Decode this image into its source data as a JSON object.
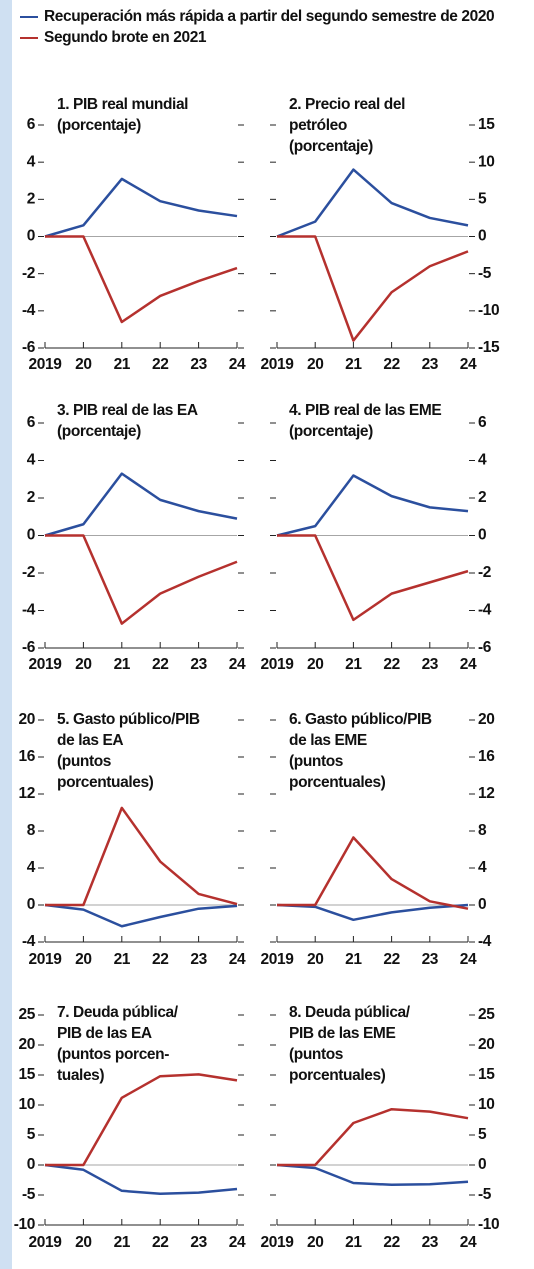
{
  "legend": [
    {
      "name": "Recuperación más rápida a partir del segundo semestre de 2020",
      "color": "#2b4f9e"
    },
    {
      "name": "Segundo brote en 2021",
      "color": "#b5312e"
    }
  ],
  "chart_data": [
    {
      "type": "line",
      "title": [
        "1. PIB real mundial",
        "(porcentaje)"
      ],
      "categories": [
        "2019",
        "20",
        "21",
        "22",
        "23",
        "24"
      ],
      "series": [
        {
          "values": [
            0,
            0.6,
            3.1,
            1.9,
            1.4,
            1.1
          ]
        },
        {
          "values": [
            0,
            0,
            -4.6,
            -3.2,
            -2.4,
            -1.7
          ]
        }
      ],
      "ylim": [
        -6,
        6
      ],
      "yticks": [
        -6,
        -4,
        -2,
        0,
        2,
        4,
        6
      ]
    },
    {
      "type": "line",
      "title": [
        "2. Precio real del",
        "petróleo",
        "(porcentaje)"
      ],
      "categories": [
        "2019",
        "20",
        "21",
        "22",
        "23",
        "24"
      ],
      "series": [
        {
          "values": [
            0,
            2,
            9,
            4.5,
            2.5,
            1.5
          ]
        },
        {
          "values": [
            0,
            0,
            -14,
            -7.5,
            -4,
            -2
          ]
        }
      ],
      "ylim": [
        -15,
        15
      ],
      "yticks": [
        -15,
        -10,
        -5,
        0,
        5,
        10,
        15
      ]
    },
    {
      "type": "line",
      "title": [
        "3. PIB real de las EA",
        "(porcentaje)"
      ],
      "categories": [
        "2019",
        "20",
        "21",
        "22",
        "23",
        "24"
      ],
      "series": [
        {
          "values": [
            0,
            0.6,
            3.3,
            1.9,
            1.3,
            0.9
          ]
        },
        {
          "values": [
            0,
            0,
            -4.7,
            -3.1,
            -2.2,
            -1.4
          ]
        }
      ],
      "ylim": [
        -6,
        6
      ],
      "yticks": [
        -6,
        -4,
        -2,
        0,
        2,
        4,
        6
      ]
    },
    {
      "type": "line",
      "title": [
        "4. PIB real de las EME",
        "(porcentaje)"
      ],
      "categories": [
        "2019",
        "20",
        "21",
        "22",
        "23",
        "24"
      ],
      "series": [
        {
          "values": [
            0,
            0.5,
            3.2,
            2.1,
            1.5,
            1.3
          ]
        },
        {
          "values": [
            0,
            0,
            -4.5,
            -3.1,
            -2.5,
            -1.9
          ]
        }
      ],
      "ylim": [
        -6,
        6
      ],
      "yticks": [
        -6,
        -4,
        -2,
        0,
        2,
        4,
        6
      ]
    },
    {
      "type": "line",
      "title": [
        "5. Gasto público/PIB",
        "de las EA",
        "(puntos",
        "porcentuales)"
      ],
      "categories": [
        "2019",
        "20",
        "21",
        "22",
        "23",
        "24"
      ],
      "series": [
        {
          "values": [
            0,
            -0.5,
            -2.3,
            -1.3,
            -0.4,
            -0.1
          ]
        },
        {
          "values": [
            0,
            0,
            10.5,
            4.7,
            1.2,
            0.1
          ]
        }
      ],
      "ylim": [
        -4,
        20
      ],
      "yticks": [
        -4,
        0,
        4,
        8,
        12,
        16,
        20
      ]
    },
    {
      "type": "line",
      "title": [
        "6. Gasto público/PIB",
        "de las EME",
        "(puntos",
        "porcentuales)"
      ],
      "categories": [
        "2019",
        "20",
        "21",
        "22",
        "23",
        "24"
      ],
      "series": [
        {
          "values": [
            0,
            -0.2,
            -1.6,
            -0.8,
            -0.3,
            0
          ]
        },
        {
          "values": [
            0,
            0,
            7.3,
            2.8,
            0.4,
            -0.4
          ]
        }
      ],
      "ylim": [
        -4,
        20
      ],
      "yticks": [
        -4,
        0,
        4,
        8,
        12,
        16,
        20
      ]
    },
    {
      "type": "line",
      "title": [
        "7. Deuda pública/",
        "PIB de las EA",
        "(puntos porcen-",
        "tuales)"
      ],
      "categories": [
        "2019",
        "20",
        "21",
        "22",
        "23",
        "24"
      ],
      "series": [
        {
          "values": [
            0,
            -0.8,
            -4.3,
            -4.8,
            -4.6,
            -4.0
          ]
        },
        {
          "values": [
            0,
            0,
            11.2,
            14.8,
            15.1,
            14.1
          ]
        }
      ],
      "ylim": [
        -10,
        25
      ],
      "yticks": [
        -10,
        -5,
        0,
        5,
        10,
        15,
        20,
        25
      ]
    },
    {
      "type": "line",
      "title": [
        "8. Deuda pública/",
        "PIB de las EME",
        "(puntos",
        "porcentuales)"
      ],
      "categories": [
        "2019",
        "20",
        "21",
        "22",
        "23",
        "24"
      ],
      "series": [
        {
          "values": [
            0,
            -0.5,
            -3,
            -3.3,
            -3.2,
            -2.8
          ]
        },
        {
          "values": [
            0,
            0,
            7,
            9.3,
            8.9,
            7.8
          ]
        }
      ],
      "ylim": [
        -10,
        25
      ],
      "yticks": [
        -10,
        -5,
        0,
        5,
        10,
        15,
        20,
        25
      ]
    }
  ]
}
